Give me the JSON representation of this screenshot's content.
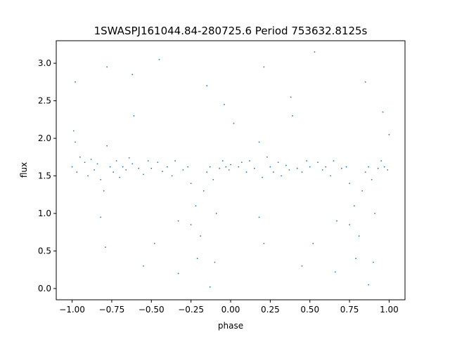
{
  "chart_data": {
    "type": "scatter",
    "title": "1SWASPJ161044.84-280725.6 Period 753632.8125s",
    "xlabel": "phase",
    "ylabel": "flux",
    "xlim": [
      -1.1,
      1.1
    ],
    "ylim": [
      -0.15,
      3.3
    ],
    "x_ticks": [
      -1.0,
      -0.75,
      -0.5,
      -0.25,
      0.0,
      0.25,
      0.5,
      0.75,
      1.0
    ],
    "x_tick_labels": [
      "−1.00",
      "−0.75",
      "−0.50",
      "−0.25",
      "0.00",
      "0.25",
      "0.50",
      "0.75",
      "1.00"
    ],
    "y_ticks": [
      0.0,
      0.5,
      1.0,
      1.5,
      2.0,
      2.5,
      3.0
    ],
    "y_tick_labels": [
      "0.0",
      "0.5",
      "1.0",
      "1.5",
      "2.0",
      "2.5",
      "3.0"
    ],
    "grid": false,
    "legend": "none",
    "series": [
      {
        "color": "#1f77b4",
        "marker": "dot",
        "profile_note": "dense scatter; baseline flux ~1.6 with spread ~0.25; dips toward ~0.3 near phase -0.2 and 0.8; occasional outliers up to ~3.1",
        "points": [
          [
            -1.0,
            1.62
          ],
          [
            -0.99,
            2.1
          ],
          [
            -0.98,
            1.95
          ],
          [
            -0.97,
            1.55
          ],
          [
            -0.95,
            1.75
          ],
          [
            -0.92,
            1.68
          ],
          [
            -0.9,
            1.5
          ],
          [
            -0.88,
            1.72
          ],
          [
            -0.86,
            1.58
          ],
          [
            -0.84,
            1.66
          ],
          [
            -0.82,
            1.45
          ],
          [
            -0.8,
            1.3
          ],
          [
            -0.79,
            0.55
          ],
          [
            -0.78,
            1.9
          ],
          [
            -0.76,
            1.62
          ],
          [
            -0.74,
            1.55
          ],
          [
            -0.72,
            1.7
          ],
          [
            -0.7,
            1.48
          ],
          [
            -0.68,
            1.62
          ],
          [
            -0.66,
            1.58
          ],
          [
            -0.64,
            1.74
          ],
          [
            -0.62,
            1.66
          ],
          [
            -0.61,
            2.3
          ],
          [
            -0.58,
            1.6
          ],
          [
            -0.55,
            1.52
          ],
          [
            -0.52,
            1.7
          ],
          [
            -0.5,
            1.6
          ],
          [
            -0.48,
            0.6
          ],
          [
            -0.46,
            1.68
          ],
          [
            -0.43,
            1.56
          ],
          [
            -0.4,
            1.62
          ],
          [
            -0.37,
            1.5
          ],
          [
            -0.35,
            1.7
          ],
          [
            -0.33,
            0.9
          ],
          [
            -0.3,
            1.58
          ],
          [
            -0.27,
            1.62
          ],
          [
            -0.25,
            1.4
          ],
          [
            -0.22,
            1.1
          ],
          [
            -0.21,
            0.4
          ],
          [
            -0.19,
            0.7
          ],
          [
            -0.17,
            1.3
          ],
          [
            -0.15,
            1.55
          ],
          [
            -0.13,
            1.62
          ],
          [
            -0.11,
            1.45
          ],
          [
            -0.1,
            0.35
          ],
          [
            -0.09,
            1.0
          ],
          [
            -0.07,
            1.6
          ],
          [
            -0.05,
            1.7
          ],
          [
            -0.03,
            1.62
          ],
          [
            -0.01,
            1.58
          ],
          [
            0.0,
            1.65
          ],
          [
            0.02,
            2.2
          ],
          [
            0.05,
            1.62
          ],
          [
            0.07,
            1.68
          ],
          [
            0.1,
            1.55
          ],
          [
            0.12,
            1.7
          ],
          [
            0.15,
            1.6
          ],
          [
            0.18,
            1.95
          ],
          [
            0.2,
            1.48
          ],
          [
            0.21,
            0.6
          ],
          [
            0.23,
            1.75
          ],
          [
            0.25,
            1.62
          ],
          [
            0.27,
            1.55
          ],
          [
            0.3,
            1.68
          ],
          [
            0.32,
            1.5
          ],
          [
            0.35,
            1.64
          ],
          [
            0.37,
            1.58
          ],
          [
            0.39,
            2.3
          ],
          [
            0.42,
            1.6
          ],
          [
            0.45,
            1.55
          ],
          [
            0.48,
            1.7
          ],
          [
            0.5,
            1.62
          ],
          [
            0.52,
            0.6
          ],
          [
            0.55,
            1.68
          ],
          [
            0.58,
            1.58
          ],
          [
            0.6,
            1.62
          ],
          [
            0.63,
            1.5
          ],
          [
            0.65,
            1.7
          ],
          [
            0.67,
            0.9
          ],
          [
            0.7,
            1.6
          ],
          [
            0.73,
            1.62
          ],
          [
            0.75,
            1.4
          ],
          [
            0.78,
            1.1
          ],
          [
            0.79,
            0.4
          ],
          [
            0.81,
            0.7
          ],
          [
            0.83,
            1.3
          ],
          [
            0.85,
            1.55
          ],
          [
            0.87,
            1.62
          ],
          [
            0.89,
            1.45
          ],
          [
            0.9,
            0.35
          ],
          [
            0.91,
            1.0
          ],
          [
            0.93,
            1.6
          ],
          [
            0.95,
            1.7
          ],
          [
            0.97,
            1.62
          ],
          [
            0.99,
            1.58
          ],
          [
            1.0,
            2.05
          ],
          [
            -0.98,
            2.75
          ],
          [
            -0.78,
            2.95
          ],
          [
            -0.45,
            3.05
          ],
          [
            0.21,
            2.95
          ],
          [
            0.53,
            3.15
          ],
          [
            -0.15,
            2.7
          ],
          [
            0.85,
            2.75
          ],
          [
            -0.62,
            2.85
          ],
          [
            0.38,
            2.55
          ],
          [
            -0.13,
            0.02
          ],
          [
            0.87,
            0.05
          ],
          [
            -0.33,
            0.2
          ],
          [
            0.66,
            0.22
          ],
          [
            -0.82,
            0.95
          ],
          [
            0.18,
            0.95
          ],
          [
            -0.55,
            0.3
          ],
          [
            0.45,
            0.3
          ],
          [
            -0.25,
            0.85
          ],
          [
            0.75,
            0.85
          ],
          [
            -0.04,
            2.45
          ],
          [
            0.96,
            2.35
          ]
        ]
      }
    ]
  }
}
